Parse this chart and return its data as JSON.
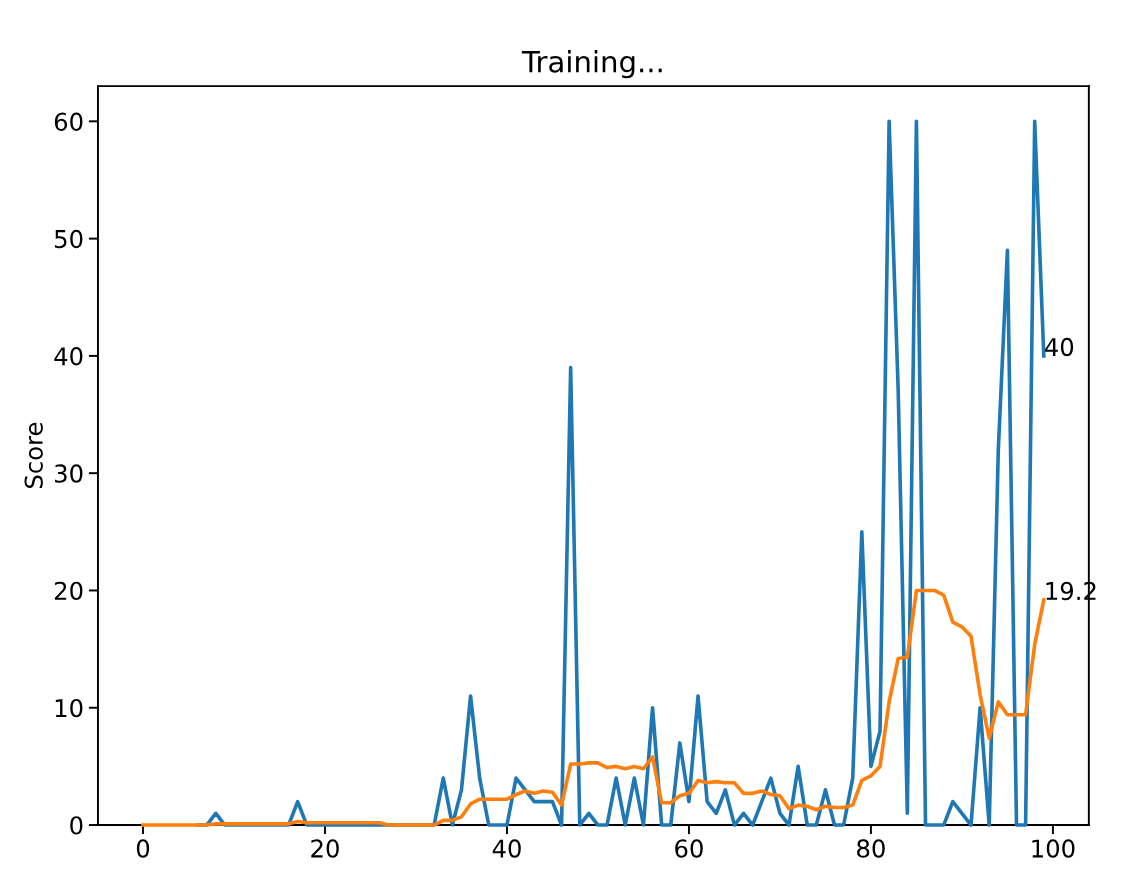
{
  "chart_data": {
    "type": "line",
    "title": "Training...",
    "ylabel": "Score",
    "x": [
      0,
      1,
      2,
      3,
      4,
      5,
      6,
      7,
      8,
      9,
      10,
      11,
      12,
      13,
      14,
      15,
      16,
      17,
      18,
      19,
      20,
      21,
      22,
      23,
      24,
      25,
      26,
      27,
      28,
      29,
      30,
      31,
      32,
      33,
      34,
      35,
      36,
      37,
      38,
      39,
      40,
      41,
      42,
      43,
      44,
      45,
      46,
      47,
      48,
      49,
      50,
      51,
      52,
      53,
      54,
      55,
      56,
      57,
      58,
      59,
      60,
      61,
      62,
      63,
      64,
      65,
      66,
      67,
      68,
      69,
      70,
      71,
      72,
      73,
      74,
      75,
      76,
      77,
      78,
      79,
      80,
      81,
      82,
      83,
      84,
      85,
      86,
      87,
      88,
      89,
      90,
      91,
      92,
      93,
      94,
      95,
      96,
      97,
      98,
      99
    ],
    "series": [
      {
        "color": "#1f77b4",
        "values": [
          null,
          null,
          null,
          null,
          null,
          null,
          0,
          0,
          1,
          0,
          0,
          0,
          0,
          0,
          0,
          0,
          0,
          2,
          0,
          0,
          0,
          0,
          0,
          0,
          0,
          0,
          0,
          0,
          0,
          0,
          0,
          0,
          0,
          4,
          0,
          3,
          11,
          4,
          0,
          0,
          0,
          4,
          3,
          2,
          2,
          2,
          0,
          39,
          0,
          1,
          0,
          0,
          4,
          0,
          4,
          0,
          10,
          0,
          0,
          7,
          2,
          11,
          2,
          1,
          3,
          0,
          1,
          0,
          2,
          4,
          1,
          0,
          5,
          0,
          0,
          3,
          0,
          0,
          4,
          25,
          5,
          8,
          60,
          37,
          1,
          60,
          0,
          0,
          0,
          2,
          1,
          0,
          10,
          0,
          32,
          49,
          0,
          0,
          60,
          40
        ]
      },
      {
        "color": "#ff7f0e",
        "values": [
          0,
          0,
          0,
          0,
          0,
          0,
          0,
          0,
          0.1,
          0.1,
          0.1,
          0.1,
          0.1,
          0.1,
          0.1,
          0.1,
          0.1,
          0.3,
          0.2,
          0.2,
          0.2,
          0.2,
          0.2,
          0.2,
          0.2,
          0.2,
          0.2,
          0,
          0,
          0,
          0,
          0,
          0,
          0.4,
          0.4,
          0.7,
          1.8,
          2.2,
          2.2,
          2.2,
          2.2,
          2.6,
          2.9,
          2.7,
          2.9,
          2.8,
          1.7,
          5.2,
          5.2,
          5.3,
          5.3,
          4.9,
          5.0,
          4.8,
          5.0,
          4.8,
          5.8,
          1.9,
          1.9,
          2.5,
          2.7,
          3.8,
          3.6,
          3.7,
          3.6,
          3.6,
          2.7,
          2.7,
          2.9,
          2.6,
          2.5,
          1.4,
          1.7,
          1.6,
          1.3,
          1.6,
          1.5,
          1.5,
          1.7,
          3.8,
          4.2,
          5.0,
          10.5,
          14.2,
          14.3,
          20.0,
          20.0,
          20.0,
          19.6,
          17.3,
          16.9,
          16.1,
          11.1,
          7.4,
          10.5,
          9.4,
          9.4,
          9.4,
          15.4,
          19.2
        ]
      }
    ],
    "annotations": [
      {
        "text": "40",
        "x": 99,
        "y": 40
      },
      {
        "text": "19.2",
        "x": 99,
        "y": 19.2
      }
    ],
    "xlim": [
      -4.95,
      103.95
    ],
    "ylim": [
      0,
      63
    ],
    "xticks": [
      0,
      20,
      40,
      60,
      80,
      100
    ],
    "yticks": [
      0,
      10,
      20,
      30,
      40,
      50,
      60
    ],
    "grid": false,
    "legend": false
  }
}
